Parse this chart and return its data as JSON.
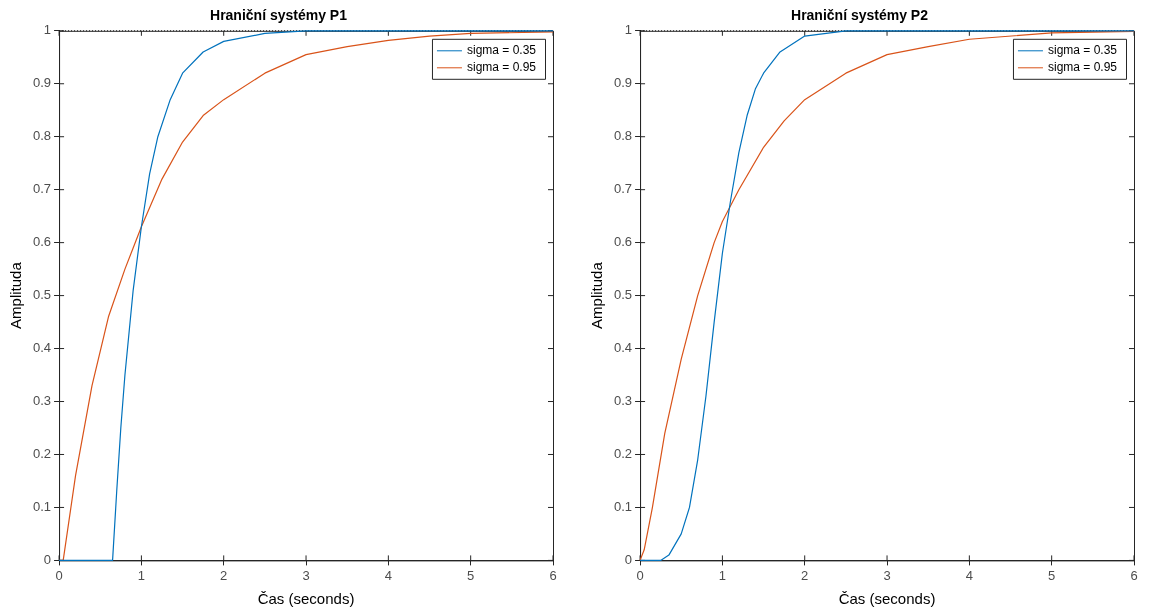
{
  "chart_data": [
    {
      "type": "line",
      "title": "Hraniční systémy P1",
      "xlabel": "Čas (seconds)",
      "ylabel": "Amplituda",
      "xlim": [
        0,
        6
      ],
      "xticks": [
        0,
        1,
        2,
        3,
        4,
        5,
        6
      ],
      "ylim": [
        0,
        1
      ],
      "yticks": [
        0,
        0.1,
        0.2,
        0.3,
        0.4,
        0.5,
        0.6,
        0.7,
        0.8,
        0.9,
        1
      ],
      "grid": false,
      "legend": "top right",
      "marker": "none",
      "line_style": "solid",
      "ref_lines": [
        {
          "axis": "y",
          "value": 1,
          "color": "#000000",
          "line_style": "dotted"
        }
      ],
      "series": [
        {
          "name": "sigma = 0.35",
          "color": "#0072bd",
          "x": [
            0,
            0.65,
            0.7,
            0.75,
            0.8,
            0.9,
            1,
            1.1,
            1.2,
            1.35,
            1.5,
            1.75,
            2,
            2.5,
            3,
            6
          ],
          "values": [
            0,
            0,
            0.13,
            0.25,
            0.35,
            0.51,
            0.63,
            0.73,
            0.8,
            0.87,
            0.92,
            0.96,
            0.98,
            0.995,
            1,
            1
          ]
        },
        {
          "name": "sigma = 0.95",
          "color": "#d95319",
          "x": [
            0,
            0.05,
            0.2,
            0.4,
            0.6,
            0.8,
            1,
            1.25,
            1.5,
            1.75,
            2,
            2.5,
            3,
            3.5,
            4,
            4.5,
            5,
            6
          ],
          "values": [
            0,
            0,
            0.16,
            0.33,
            0.46,
            0.55,
            0.63,
            0.72,
            0.79,
            0.84,
            0.87,
            0.92,
            0.955,
            0.97,
            0.982,
            0.99,
            0.995,
            0.998
          ]
        }
      ]
    },
    {
      "type": "line",
      "title": "Hraniční systémy P2",
      "xlabel": "Čas (seconds)",
      "ylabel": "Amplituda",
      "xlim": [
        0,
        6
      ],
      "xticks": [
        0,
        1,
        2,
        3,
        4,
        5,
        6
      ],
      "ylim": [
        0,
        1
      ],
      "yticks": [
        0,
        0.1,
        0.2,
        0.3,
        0.4,
        0.5,
        0.6,
        0.7,
        0.8,
        0.9,
        1
      ],
      "grid": false,
      "legend": "top right",
      "marker": "none",
      "line_style": "solid",
      "ref_lines": [
        {
          "axis": "y",
          "value": 1,
          "color": "#000000",
          "line_style": "dotted"
        }
      ],
      "series": [
        {
          "name": "sigma = 0.35",
          "color": "#0072bd",
          "x": [
            0,
            0.25,
            0.35,
            0.5,
            0.6,
            0.7,
            0.8,
            0.9,
            1,
            1.1,
            1.2,
            1.3,
            1.4,
            1.5,
            1.7,
            2,
            2.5,
            6
          ],
          "values": [
            0,
            0,
            0.01,
            0.05,
            0.1,
            0.19,
            0.31,
            0.45,
            0.58,
            0.68,
            0.77,
            0.84,
            0.89,
            0.92,
            0.96,
            0.99,
            1,
            1
          ]
        },
        {
          "name": "sigma = 0.95",
          "color": "#d95319",
          "x": [
            0,
            0.05,
            0.15,
            0.3,
            0.5,
            0.7,
            0.9,
            1,
            1.2,
            1.5,
            1.75,
            2,
            2.5,
            3,
            3.5,
            4,
            5,
            6
          ],
          "values": [
            0,
            0.02,
            0.1,
            0.24,
            0.38,
            0.5,
            0.6,
            0.64,
            0.7,
            0.78,
            0.83,
            0.87,
            0.92,
            0.955,
            0.97,
            0.984,
            0.996,
            0.999
          ]
        }
      ]
    }
  ]
}
